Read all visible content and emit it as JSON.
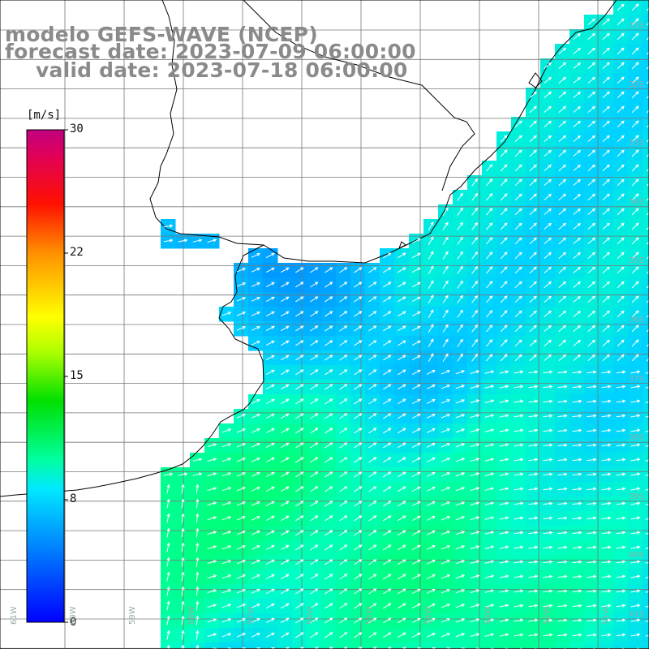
{
  "title": {
    "line1": "modelo GEFS-WAVE (NCEP)",
    "line2": "forecast date: 2023-07-09 06:00:00",
    "line3": "valid date: 2023-07-18 06:00:00"
  },
  "colorbar": {
    "units": "[m/s]",
    "ticks": [
      "30",
      "22",
      "15",
      "8",
      "0"
    ],
    "tick_values": [
      30,
      22,
      15,
      8,
      0
    ],
    "range": [
      0,
      30
    ],
    "colors": [
      "#0000ff",
      "#0080ff",
      "#00d8ff",
      "#00ff80",
      "#00e000",
      "#a0ff00",
      "#ffff00",
      "#ffa000",
      "#ff3000",
      "#ff0000",
      "#e0005a",
      "#c00080"
    ]
  },
  "map": {
    "variable": "wind speed and direction",
    "lat_labels": [
      "31S",
      "32S",
      "33S",
      "34S",
      "35S",
      "36S",
      "37S",
      "38S",
      "39S",
      "40S",
      "41S"
    ],
    "lon_labels": [
      "61W",
      "60W",
      "59W",
      "58W",
      "57W",
      "56W",
      "55W",
      "54W",
      "53W",
      "52W",
      "51W"
    ],
    "land_color": "#ffffff",
    "coast_color": "#000000",
    "grid_color": "#808080",
    "arrow_color": "#ffffff"
  }
}
